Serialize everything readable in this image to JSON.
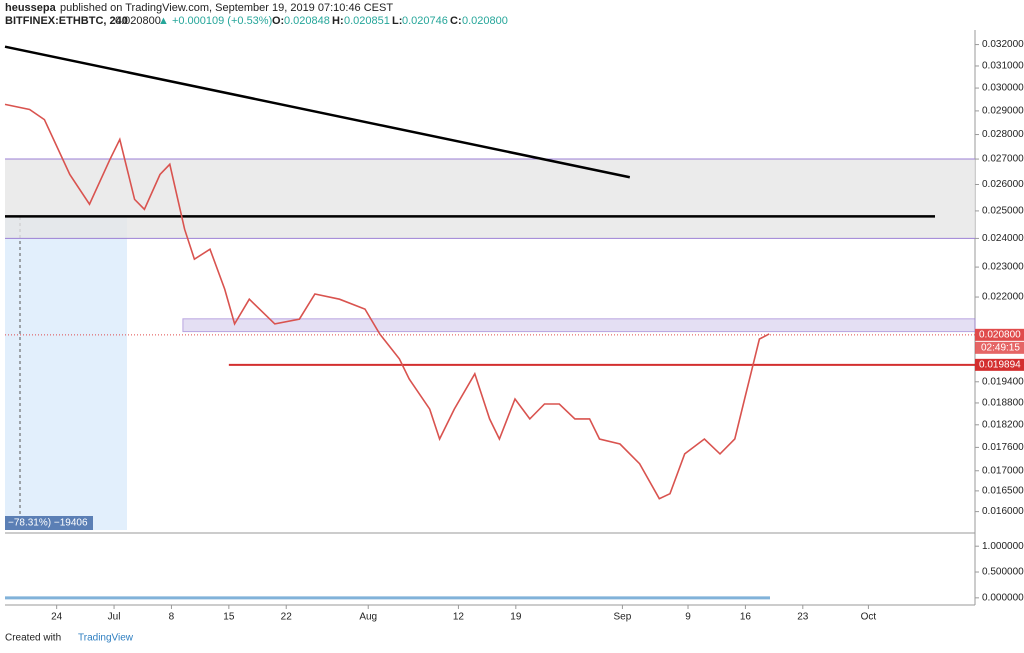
{
  "header": {
    "author": "heussepa",
    "published": "published on TradingView.com, September 19, 2019 07:10:46 CEST",
    "symbol": "BITFINEX:ETHBTC, 240",
    "price": "0.020800",
    "change": "▲ +0.000109 (+0.53%)",
    "o_label": "O:",
    "o": "0.020848",
    "h_label": "H:",
    "h": "0.020851",
    "l_label": "L:",
    "l": "0.020746",
    "c_label": "C:",
    "c": "0.020800"
  },
  "chart_data": {
    "type": "line",
    "log_scale": true,
    "grid": false,
    "xlim": [
      -6.3,
      112
    ],
    "ylim": [
      0.0155,
      0.0327
    ],
    "xticks": [
      {
        "value": 0,
        "label": "24"
      },
      {
        "value": 7,
        "label": "Jul"
      },
      {
        "value": 14,
        "label": "8"
      },
      {
        "value": 21,
        "label": "15"
      },
      {
        "value": 28,
        "label": "22"
      },
      {
        "value": 38,
        "label": "Aug"
      },
      {
        "value": 49,
        "label": "12"
      },
      {
        "value": 56,
        "label": "19"
      },
      {
        "value": 69,
        "label": "Sep"
      },
      {
        "value": 77,
        "label": "9"
      },
      {
        "value": 84,
        "label": "16"
      },
      {
        "value": 91,
        "label": "23"
      },
      {
        "value": 99,
        "label": "Oct"
      }
    ],
    "yticks": [
      {
        "value": 0.032,
        "label": "0.032000"
      },
      {
        "value": 0.031,
        "label": "0.031000"
      },
      {
        "value": 0.03,
        "label": "0.030000"
      },
      {
        "value": 0.029,
        "label": "0.029000"
      },
      {
        "value": 0.028,
        "label": "0.028000"
      },
      {
        "value": 0.027,
        "label": "0.027000"
      },
      {
        "value": 0.026,
        "label": "0.026000"
      },
      {
        "value": 0.025,
        "label": "0.025000"
      },
      {
        "value": 0.024,
        "label": "0.024000"
      },
      {
        "value": 0.023,
        "label": "0.023000"
      },
      {
        "value": 0.022,
        "label": "0.022000"
      },
      {
        "value": 0.0194,
        "label": "0.019400"
      },
      {
        "value": 0.0188,
        "label": "0.018800"
      },
      {
        "value": 0.0182,
        "label": "0.018200"
      },
      {
        "value": 0.0176,
        "label": "0.017600"
      },
      {
        "value": 0.017,
        "label": "0.017000"
      },
      {
        "value": 0.0165,
        "label": "0.016500"
      },
      {
        "value": 0.016,
        "label": "0.016000"
      }
    ],
    "series": [
      {
        "name": "ETHBTC",
        "color": "#d9534f",
        "x": [
          -6.3,
          -3.3,
          -1.5,
          1.6,
          4.0,
          6.5,
          7.7,
          9.5,
          10.7,
          12.6,
          13.8,
          15.6,
          16.8,
          18.7,
          20.5,
          21.7,
          23.5,
          26.6,
          29.6,
          31.5,
          34.5,
          37.6,
          39.4,
          41.8,
          43.0,
          45.5,
          46.7,
          48.5,
          51.0,
          52.8,
          54.0,
          55.9,
          57.7,
          59.5,
          61.3,
          63.2,
          65.0,
          66.2,
          68.7,
          71.1,
          73.5,
          74.8,
          76.6,
          79.0,
          80.9,
          82.7,
          83.9,
          85.7,
          86.9
        ],
        "values": [
          0.02928,
          0.02906,
          0.02863,
          0.02639,
          0.02525,
          0.02699,
          0.0278,
          0.02543,
          0.02506,
          0.02639,
          0.02679,
          0.02433,
          0.02327,
          0.02362,
          0.02226,
          0.02114,
          0.02193,
          0.02114,
          0.02129,
          0.0221,
          0.02193,
          0.02161,
          0.02083,
          0.02007,
          0.01948,
          0.01863,
          0.01782,
          0.01863,
          0.01963,
          0.01836,
          0.01782,
          0.01891,
          0.01836,
          0.01877,
          0.01877,
          0.01836,
          0.01836,
          0.01782,
          0.01769,
          0.01718,
          0.01631,
          0.01643,
          0.01743,
          0.01782,
          0.01743,
          0.01782,
          0.01891,
          0.02067,
          0.02083
        ]
      }
    ],
    "trendline": {
      "x": [
        -6.3,
        69.9
      ],
      "values": [
        0.0319,
        0.02628
      ],
      "color": "#000000"
    },
    "levels": [
      {
        "value": 0.027,
        "color": "#9b7fd4"
      },
      {
        "value": 0.024,
        "color": "#9b7fd4"
      },
      {
        "value": 0.0248,
        "color": "#000000"
      }
    ],
    "zone": {
      "from": 0.024,
      "to": 0.027,
      "color": "#e6e6e6"
    },
    "box": {
      "x": 15.4,
      "from": 0.0209,
      "to": 0.0213,
      "color": "#d9d2ee"
    },
    "last_price": {
      "value": 0.0208,
      "label": "0.020800",
      "color": "#e04b4b"
    },
    "countdown": "02:49:15",
    "support": {
      "value": 0.019894,
      "label": "0.019894",
      "color": "#d32f2f"
    },
    "annotations": [
      "−78.31%) −19406"
    ],
    "oscillator": {
      "ylim": [
        -0.1,
        1.12
      ],
      "yticks": [
        {
          "value": 1,
          "label": "1.000000"
        },
        {
          "value": 0.5,
          "label": "0.500000"
        },
        {
          "value": 0,
          "label": "0.000000"
        }
      ]
    }
  },
  "footer": {
    "created": "Created with",
    "brand": "TradingView"
  }
}
